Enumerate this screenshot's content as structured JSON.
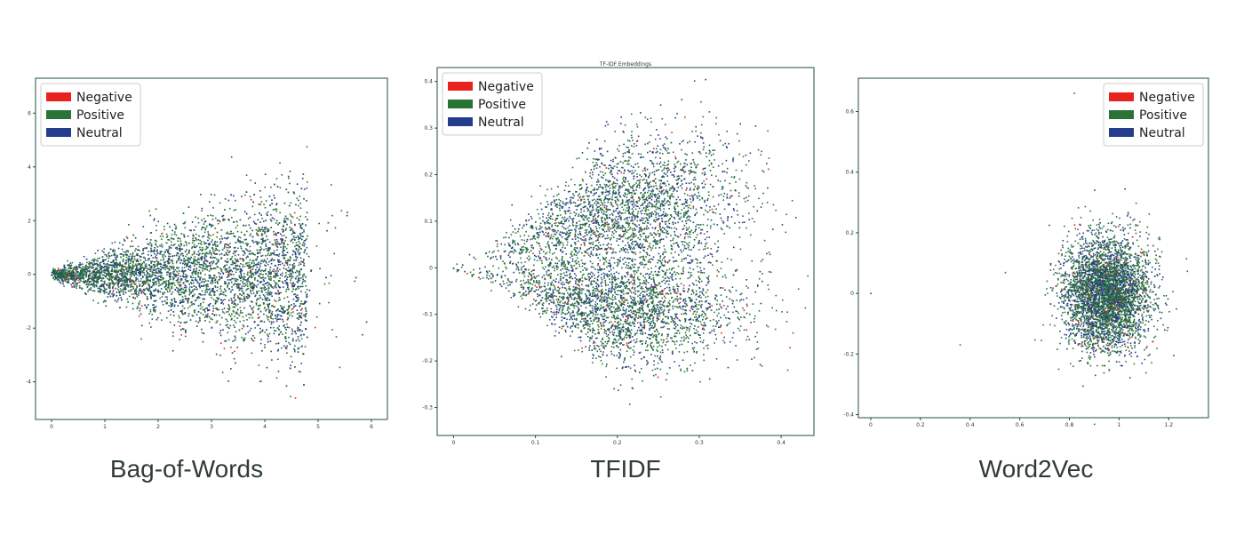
{
  "legend": [
    {
      "label": "Negative",
      "color": "#e8231e"
    },
    {
      "label": "Positive",
      "color": "#2a7336"
    },
    {
      "label": "Neutral",
      "color": "#263c8c"
    }
  ],
  "captions": [
    "Bag-of-Words",
    "TFIDF",
    "Word2Vec"
  ],
  "chart_data": [
    {
      "type": "scatter",
      "caption": "Bag-of-Words",
      "title": "",
      "xlim": [
        -0.3,
        6.3
      ],
      "ylim": [
        -5.4,
        7.3
      ],
      "xticks": [
        0,
        1,
        2,
        3,
        4,
        5,
        6
      ],
      "yticks": [
        -4,
        -2,
        0,
        2,
        4,
        6
      ],
      "legend_position": "top-left",
      "series": [
        {
          "name": "Negative",
          "color": "#e8231e"
        },
        {
          "name": "Positive",
          "color": "#2a7336"
        },
        {
          "name": "Neutral",
          "color": "#263c8c"
        }
      ],
      "cloud": {
        "shape": "cone",
        "apex": [
          0,
          0
        ],
        "x_end": 4.8,
        "y_spread": 2.8
      }
    },
    {
      "type": "scatter",
      "caption": "TFIDF",
      "title": "TF-IDF Embeddings",
      "xlim": [
        -0.02,
        0.44
      ],
      "ylim": [
        -0.36,
        0.43
      ],
      "xticks": [
        0.0,
        0.1,
        0.2,
        0.3,
        0.4
      ],
      "yticks": [
        -0.3,
        -0.2,
        -0.1,
        0.0,
        0.1,
        0.2,
        0.3,
        0.4
      ],
      "legend_position": "top-left",
      "series": [
        {
          "name": "Negative",
          "color": "#e8231e"
        },
        {
          "name": "Positive",
          "color": "#2a7336"
        },
        {
          "name": "Neutral",
          "color": "#263c8c"
        }
      ],
      "cloud": {
        "shape": "heart",
        "apex": [
          0,
          0
        ],
        "upper_center": [
          0.22,
          0.14
        ],
        "lower_center": [
          0.22,
          -0.08
        ]
      }
    },
    {
      "type": "scatter",
      "caption": "Word2Vec",
      "title": "",
      "xlim": [
        -0.05,
        1.36
      ],
      "ylim": [
        -0.41,
        0.71
      ],
      "xticks": [
        0.0,
        0.2,
        0.4,
        0.6,
        0.8,
        1.0,
        1.2
      ],
      "yticks": [
        -0.4,
        -0.2,
        0.0,
        0.2,
        0.4,
        0.6
      ],
      "legend_position": "top-right",
      "series": [
        {
          "name": "Negative",
          "color": "#e8231e"
        },
        {
          "name": "Positive",
          "color": "#2a7336"
        },
        {
          "name": "Neutral",
          "color": "#263c8c"
        }
      ],
      "cloud": {
        "shape": "blob",
        "center": [
          0.95,
          0.0
        ]
      }
    }
  ]
}
